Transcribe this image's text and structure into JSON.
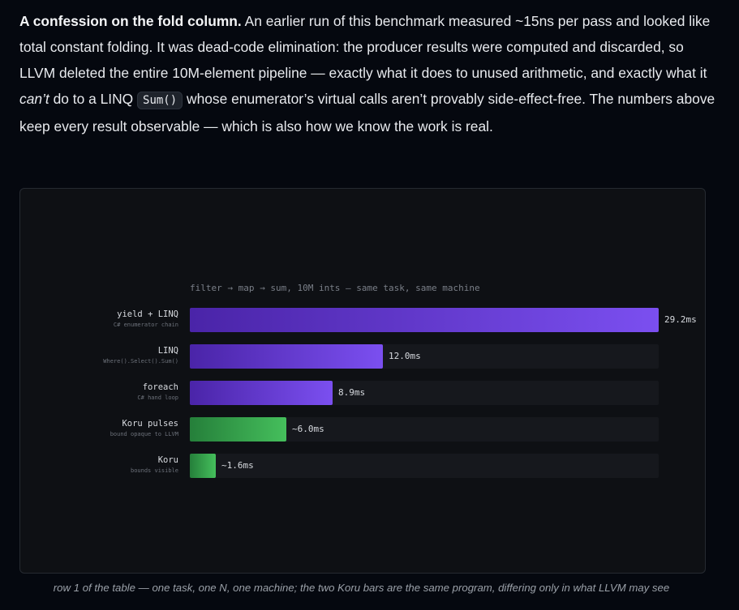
{
  "paragraph": {
    "lead": "A confession on the fold column.",
    "t1": " An earlier run of this benchmark measured ~15ns per pass and looked like total constant folding. It was dead-code elimination: the producer results were computed and discarded, so LLVM deleted the entire 10M-element pipeline — exactly what it does to unused arithmetic, and exactly what it ",
    "em": "can’t",
    "t2": " do to a LINQ ",
    "code": "Sum()",
    "t3": " whose enumerator’s virtual calls aren’t provably side-effect-free. The numbers above keep every result observable — which is also how we know the work is real."
  },
  "chart_data": {
    "type": "bar",
    "orientation": "horizontal",
    "title": "filter → map → sum, 10M ints — same task, same machine",
    "unit": "ms",
    "xlim": [
      0,
      29.2
    ],
    "categories": [
      "yield + LINQ",
      "LINQ",
      "foreach",
      "Koru pulses",
      "Koru"
    ],
    "sublabels": [
      "C# enumerator chain",
      "Where().Select().Sum()",
      "C# hand loop",
      "bound opaque to LLVM",
      "bounds visible"
    ],
    "values": [
      29.2,
      12.0,
      8.9,
      6.0,
      1.6
    ],
    "value_labels": [
      "29.2ms",
      "12.0ms",
      "8.9ms",
      "~6.0ms",
      "~1.6ms"
    ],
    "colors": [
      "#7b4ff0",
      "#7b4ff0",
      "#7b4ff0",
      "#45bf5c",
      "#45bf5c"
    ],
    "grid": false,
    "legend": "none"
  },
  "caption": "row 1 of the table — one task, one N, one machine; the two Koru bars are the same program, differing only in what LLVM may see"
}
